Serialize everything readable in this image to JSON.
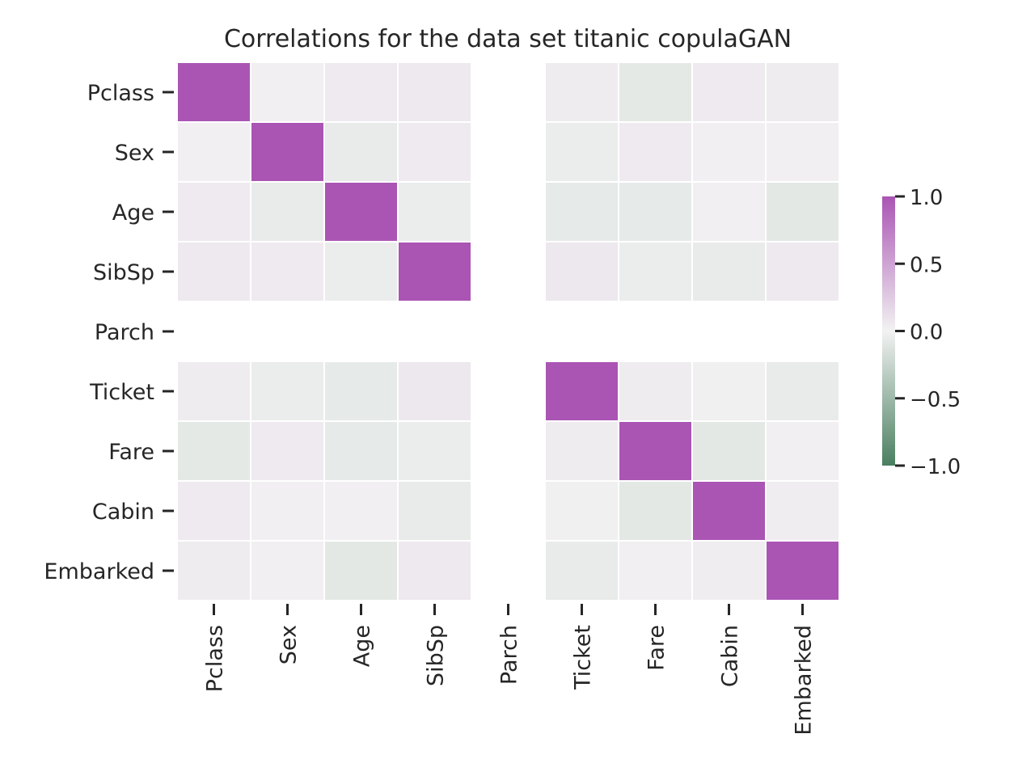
{
  "chart_data": {
    "type": "heatmap",
    "title": "Correlations for the data set titanic copulaGAN",
    "row_labels": [
      "Pclass",
      "Sex",
      "Age",
      "SibSp",
      "Parch",
      "Ticket",
      "Fare",
      "Cabin",
      "Embarked"
    ],
    "col_labels": [
      "Pclass",
      "Sex",
      "Age",
      "SibSp",
      "Parch",
      "Ticket",
      "Fare",
      "Cabin",
      "Embarked"
    ],
    "values": [
      [
        1.0,
        0.02,
        0.05,
        0.06,
        null,
        0.04,
        -0.08,
        0.05,
        0.04
      ],
      [
        0.02,
        1.0,
        -0.06,
        0.05,
        null,
        -0.04,
        0.05,
        0.02,
        0.02
      ],
      [
        0.05,
        -0.06,
        1.0,
        -0.04,
        null,
        -0.07,
        -0.07,
        0.02,
        -0.09
      ],
      [
        0.06,
        0.05,
        -0.04,
        1.0,
        null,
        0.07,
        -0.04,
        -0.06,
        0.06
      ],
      [
        null,
        null,
        null,
        null,
        null,
        null,
        null,
        null,
        null
      ],
      [
        0.04,
        -0.04,
        -0.07,
        0.07,
        null,
        1.0,
        0.04,
        0.01,
        -0.06
      ],
      [
        -0.08,
        0.05,
        -0.07,
        -0.04,
        null,
        0.04,
        1.0,
        -0.09,
        0.02
      ],
      [
        0.05,
        0.02,
        0.02,
        -0.06,
        null,
        0.01,
        -0.09,
        1.0,
        0.03
      ],
      [
        0.04,
        0.02,
        -0.09,
        0.06,
        null,
        -0.06,
        0.02,
        0.03,
        1.0
      ]
    ],
    "colorbar": {
      "vmin": -1.0,
      "vmax": 1.0,
      "ticks": [
        1.0,
        0.5,
        0.0,
        -0.5,
        -1.0
      ],
      "tick_labels": [
        "1.0",
        "0.5",
        "0.0",
        "−0.5",
        "−1.0"
      ],
      "colors": {
        "negative_end": "#4a7f60",
        "center": "#f2f2f2",
        "positive_end": "#aa55b4"
      }
    },
    "grid": false,
    "legend": "right"
  }
}
